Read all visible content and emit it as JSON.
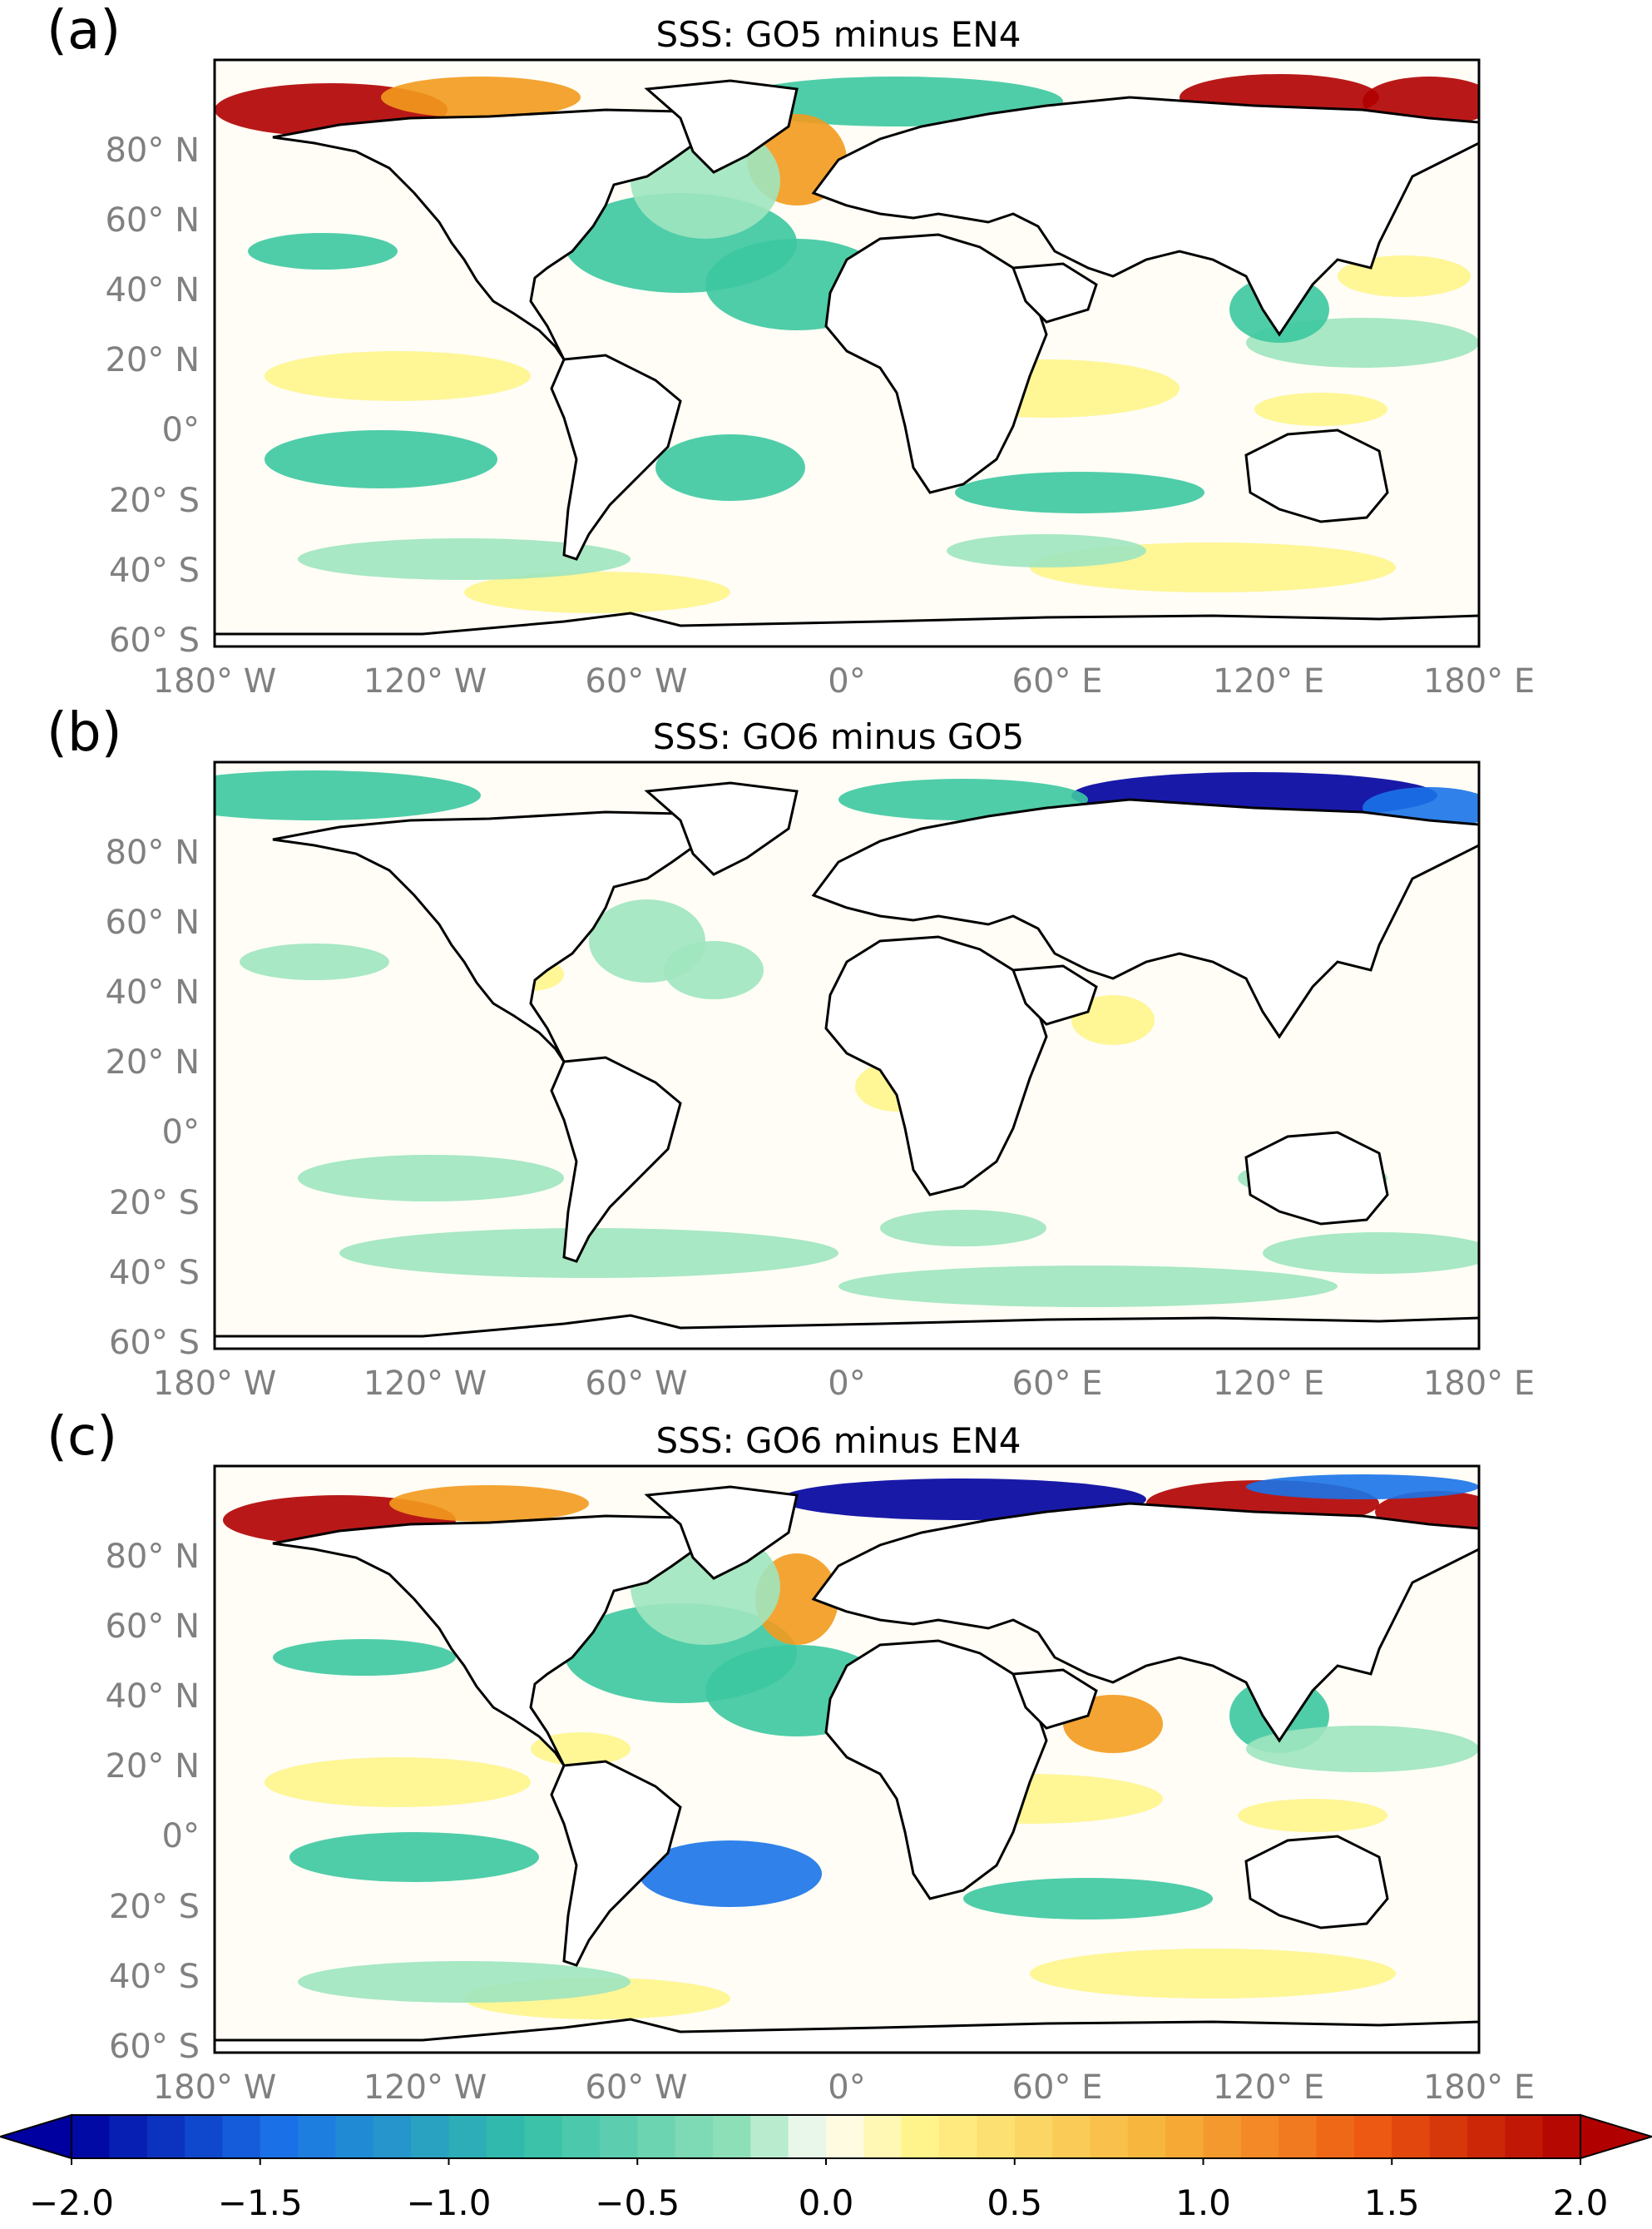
{
  "panels": [
    {
      "label": "(a)",
      "title": "SSS: GO5 minus EN4"
    },
    {
      "label": "(b)",
      "title": "SSS: GO6 minus GO5"
    },
    {
      "label": "(c)",
      "title": "SSS: GO6 minus EN4"
    }
  ],
  "axes": {
    "lat_ticks": [
      "80° N",
      "60° N",
      "40° N",
      "20° N",
      "0°",
      "20° S",
      "40° S",
      "60° S"
    ],
    "lon_ticks": [
      "180° W",
      "120° W",
      "60° W",
      "0°",
      "60° E",
      "120° E",
      "180° E"
    ]
  },
  "colorbar": {
    "ticks": [
      "−2.0",
      "−1.5",
      "−1.0",
      "−0.5",
      "0.0",
      "0.5",
      "1.0",
      "1.5",
      "2.0"
    ],
    "range": [
      -2.0,
      2.0
    ],
    "extend": "both",
    "colors": {
      "deep_blue": "#0000a0",
      "blue": "#1a73e8",
      "teal": "#3cc8a0",
      "light_green": "#9fe6bf",
      "neutral": "#fffdf6",
      "yellow": "#fff58c",
      "orange": "#f39a1d",
      "red": "#e02417",
      "dark_red": "#b00000"
    }
  },
  "colors": {
    "land": "#ffffff",
    "coast": "#000000",
    "ocean_neutral": "#fffdf6"
  }
}
